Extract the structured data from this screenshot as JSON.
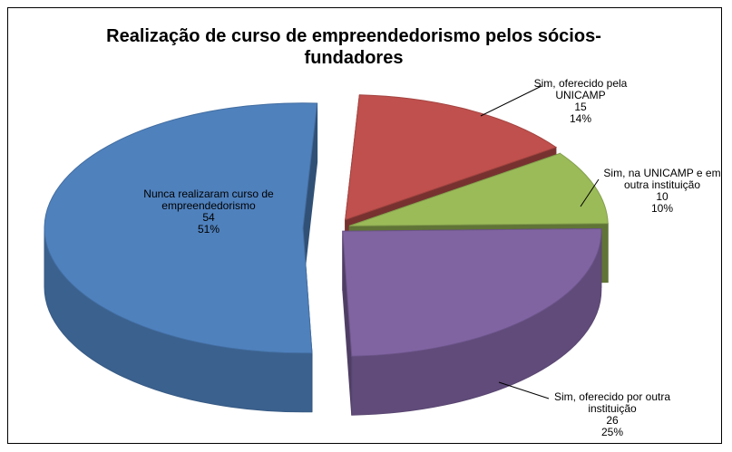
{
  "chart_data": {
    "type": "pie3d",
    "title": "Realização de curso de empreendedorismo pelos sócios-fundadores",
    "categories": [
      "Nunca realizaram curso de empreendedorismo",
      "Sim, oferecido pela UNICAMP",
      "Sim, na UNICAMP e em outra instituição",
      "Sim, oferecido por outra instituição"
    ],
    "values": [
      54,
      15,
      10,
      26
    ],
    "percentages": [
      51,
      14,
      10,
      25
    ],
    "percentage_labels": [
      "51%",
      "14%",
      "10%",
      "25%"
    ],
    "colors": [
      "#4f81bd",
      "#c0504d",
      "#9bbb59",
      "#8064a2"
    ]
  }
}
